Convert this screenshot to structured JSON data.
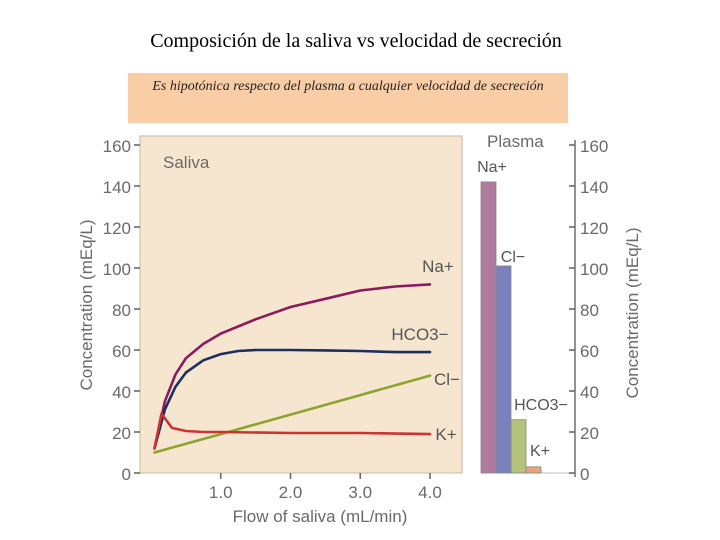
{
  "slide": {
    "title": "Composición de la saliva vs velocidad de secreción",
    "note": "Es hipotónica respecto del plasma a cualquier velocidad de secreción"
  },
  "chart_data": [
    {
      "type": "line",
      "title": "Saliva",
      "xlabel": "Flow of saliva (mL/min)",
      "ylabel": "Concentration (mEq/L)",
      "xlim": [
        0,
        4.3
      ],
      "ylim": [
        0,
        160
      ],
      "x_ticks": [
        "1.0",
        "2.0",
        "3.0",
        "4.0"
      ],
      "y_ticks": [
        "0",
        "20",
        "40",
        "60",
        "80",
        "100",
        "120",
        "140",
        "160"
      ],
      "grid": false,
      "background": "#f7e6cf",
      "series": [
        {
          "name": "Na+",
          "color": "#8b1a5e",
          "x": [
            0.05,
            0.2,
            0.35,
            0.5,
            0.75,
            1.0,
            1.5,
            2.0,
            2.5,
            3.0,
            3.5,
            4.0
          ],
          "y": [
            12,
            35,
            48,
            56,
            63,
            68,
            75,
            81,
            85,
            89,
            91,
            92
          ]
        },
        {
          "name": "HCO3−",
          "color": "#1c2f5e",
          "x": [
            0.05,
            0.2,
            0.35,
            0.5,
            0.75,
            1.0,
            1.25,
            1.5,
            2.0,
            2.5,
            3.0,
            3.5,
            4.0
          ],
          "y": [
            12,
            31,
            42,
            49,
            55,
            58,
            59.5,
            60,
            60,
            59.8,
            59.5,
            59,
            59
          ]
        },
        {
          "name": "Cl−",
          "color": "#8ea32f",
          "x": [
            0.05,
            1.0,
            2.0,
            3.0,
            4.0
          ],
          "y": [
            10,
            19,
            28.5,
            38,
            47.5
          ]
        },
        {
          "name": "K+",
          "color": "#cc3333",
          "x": [
            0.05,
            0.15,
            0.3,
            0.5,
            0.75,
            1.0,
            2.0,
            3.0,
            4.0
          ],
          "y": [
            12,
            29,
            22,
            20.5,
            20,
            20,
            19.5,
            19.5,
            19
          ]
        }
      ]
    },
    {
      "type": "bar",
      "title": "Plasma",
      "ylabel": "Concentration (mEq/L)",
      "ylim": [
        0,
        160
      ],
      "y_ticks": [
        "0",
        "20",
        "40",
        "60",
        "80",
        "100",
        "120",
        "140",
        "160"
      ],
      "categories": [
        "Na+",
        "Cl−",
        "HCO3−",
        "K+"
      ],
      "values": [
        142,
        101,
        26,
        3
      ],
      "colors": [
        "#b07a9c",
        "#7a82bd",
        "#b4c27a",
        "#e9a27a"
      ]
    }
  ]
}
